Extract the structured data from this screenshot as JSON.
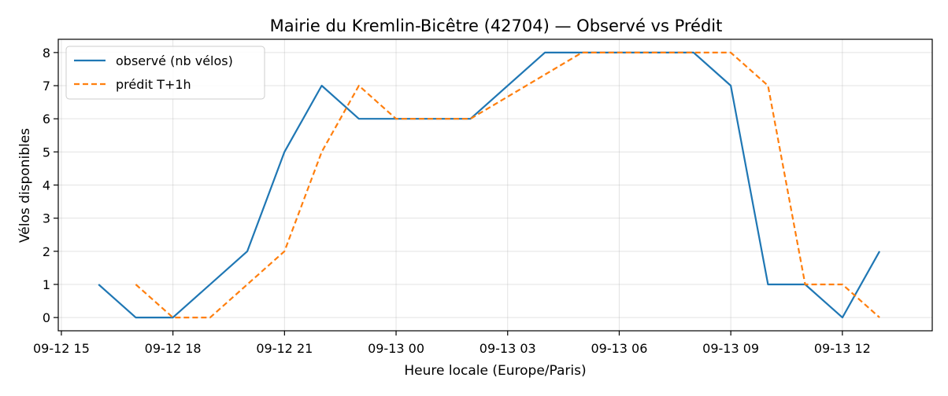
{
  "chart_data": {
    "type": "line",
    "title": "Mairie du Kremlin-Bicêtre (42704) — Observé vs Prédit",
    "xlabel": "Heure locale (Europe/Paris)",
    "ylabel": "Vélos disponibles",
    "x_unit": "hour",
    "xlim": [
      "2024-09-12 14:55",
      "2024-09-13 14:25"
    ],
    "ylim": [
      -0.4,
      8.4
    ],
    "x_ticks": [
      {
        "at": "2024-09-12 15:00",
        "label": "09-12 15"
      },
      {
        "at": "2024-09-12 18:00",
        "label": "09-12 18"
      },
      {
        "at": "2024-09-12 21:00",
        "label": "09-12 21"
      },
      {
        "at": "2024-09-13 00:00",
        "label": "09-13 00"
      },
      {
        "at": "2024-09-13 03:00",
        "label": "09-13 03"
      },
      {
        "at": "2024-09-13 06:00",
        "label": "09-13 06"
      },
      {
        "at": "2024-09-13 09:00",
        "label": "09-13 09"
      },
      {
        "at": "2024-09-13 12:00",
        "label": "09-13 12"
      }
    ],
    "y_ticks": [
      0,
      1,
      2,
      3,
      4,
      5,
      6,
      7,
      8
    ],
    "grid": true,
    "legend_position": "top-left",
    "series": [
      {
        "name": "observé (nb vélos)",
        "color": "#1f77b4",
        "style": "solid",
        "points": [
          {
            "x": "2024-09-12 16:00",
            "y": 1
          },
          {
            "x": "2024-09-12 17:00",
            "y": 0
          },
          {
            "x": "2024-09-12 18:00",
            "y": 0
          },
          {
            "x": "2024-09-12 20:00",
            "y": 2
          },
          {
            "x": "2024-09-12 21:00",
            "y": 5
          },
          {
            "x": "2024-09-12 22:00",
            "y": 7
          },
          {
            "x": "2024-09-12 23:00",
            "y": 6
          },
          {
            "x": "2024-09-13 00:00",
            "y": 6
          },
          {
            "x": "2024-09-13 01:00",
            "y": 6
          },
          {
            "x": "2024-09-13 02:00",
            "y": 6
          },
          {
            "x": "2024-09-13 04:00",
            "y": 8
          },
          {
            "x": "2024-09-13 05:00",
            "y": 8
          },
          {
            "x": "2024-09-13 06:00",
            "y": 8
          },
          {
            "x": "2024-09-13 07:00",
            "y": 8
          },
          {
            "x": "2024-09-13 08:00",
            "y": 8
          },
          {
            "x": "2024-09-13 09:00",
            "y": 7
          },
          {
            "x": "2024-09-13 10:00",
            "y": 1
          },
          {
            "x": "2024-09-13 11:00",
            "y": 1
          },
          {
            "x": "2024-09-13 12:00",
            "y": 0
          },
          {
            "x": "2024-09-13 13:00",
            "y": 2
          }
        ]
      },
      {
        "name": "prédit T+1h",
        "color": "#ff7f0e",
        "style": "dashed",
        "points": [
          {
            "x": "2024-09-12 17:00",
            "y": 1
          },
          {
            "x": "2024-09-12 18:00",
            "y": 0
          },
          {
            "x": "2024-09-12 19:00",
            "y": 0
          },
          {
            "x": "2024-09-12 21:00",
            "y": 2
          },
          {
            "x": "2024-09-12 22:00",
            "y": 5
          },
          {
            "x": "2024-09-12 23:00",
            "y": 7
          },
          {
            "x": "2024-09-13 00:00",
            "y": 6
          },
          {
            "x": "2024-09-13 01:00",
            "y": 6
          },
          {
            "x": "2024-09-13 02:00",
            "y": 6
          },
          {
            "x": "2024-09-13 05:00",
            "y": 8
          },
          {
            "x": "2024-09-13 06:00",
            "y": 8
          },
          {
            "x": "2024-09-13 07:00",
            "y": 8
          },
          {
            "x": "2024-09-13 08:00",
            "y": 8
          },
          {
            "x": "2024-09-13 09:00",
            "y": 8
          },
          {
            "x": "2024-09-13 10:00",
            "y": 7
          },
          {
            "x": "2024-09-13 11:00",
            "y": 1
          },
          {
            "x": "2024-09-13 12:00",
            "y": 1
          },
          {
            "x": "2024-09-13 13:00",
            "y": 0
          }
        ]
      }
    ]
  }
}
